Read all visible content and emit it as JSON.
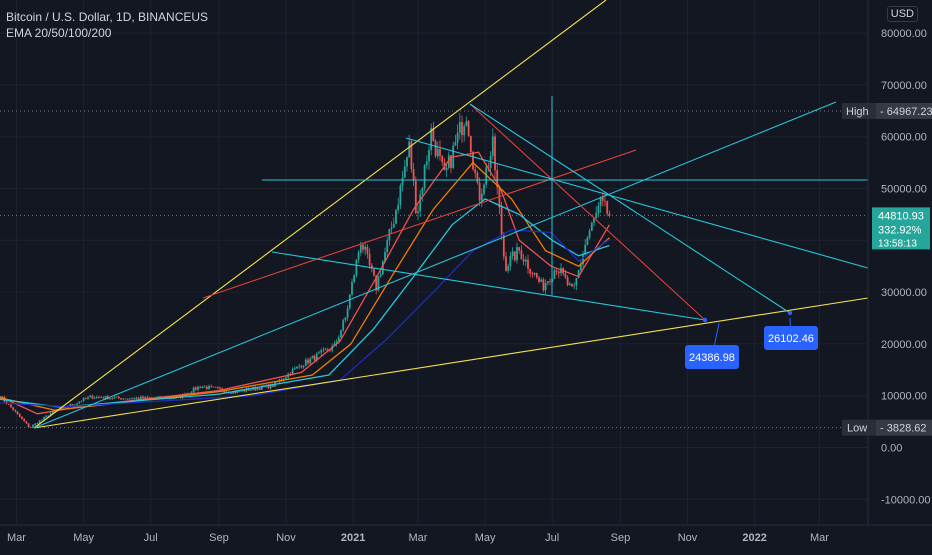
{
  "legend": {
    "symbol": "Bitcoin / U.S. Dollar, 1D, BINANCEUS",
    "indicator": "EMA 20/50/100/200"
  },
  "price_scale": {
    "currency": "USD",
    "ticks": [
      "80000.00",
      "70000.00",
      "60000.00",
      "50000.00",
      "40000.00",
      "30000.00",
      "20000.00",
      "10000.00",
      "0.00",
      "-10000.00"
    ],
    "high_label": "High",
    "high_value": "64967.23",
    "low_label": "Low",
    "low_value": "3828.62",
    "last_price": "44810.93",
    "last_change": "332.92%",
    "countdown": "13:58:13"
  },
  "time_axis": [
    "Mar",
    "May",
    "Jul",
    "Sep",
    "Nov",
    "2021",
    "Mar",
    "May",
    "Jul",
    "Sep",
    "Nov",
    "2022",
    "Mar"
  ],
  "projection_labels": [
    "24386.98",
    "26102.46"
  ],
  "colors": {
    "background": "#131722",
    "up": "#26a69a",
    "down": "#ef5350",
    "ema20": "#ef5350",
    "ema50": "#f57c00",
    "ema100": "#26c6da",
    "ema200": "#1e2dbd",
    "trend_yellow": "#f5e14a",
    "trend_cyan": "#26c6da",
    "trend_red": "#e0413a",
    "label_blue": "#2962ff"
  },
  "chart_data": {
    "type": "candlestick",
    "title": "Bitcoin / U.S. Dollar, 1D, BINANCEUS",
    "indicator": "EMA 20/50/100/200",
    "y_range": [
      -13000,
      88000
    ],
    "x_range": [
      "2020-02-15",
      "2022-04-07"
    ],
    "high": 64967.23,
    "low": 3828.62,
    "last_price": 44810.93,
    "price_series_anchors": [
      {
        "date": "2020-02-15",
        "price": 10000
      },
      {
        "date": "2020-03-13",
        "price": 3828.62
      },
      {
        "date": "2020-04-01",
        "price": 6600
      },
      {
        "date": "2020-05-08",
        "price": 9800
      },
      {
        "date": "2020-06-01",
        "price": 9500
      },
      {
        "date": "2020-07-25",
        "price": 9600
      },
      {
        "date": "2020-08-15",
        "price": 11800
      },
      {
        "date": "2020-09-15",
        "price": 10700
      },
      {
        "date": "2020-10-20",
        "price": 12000
      },
      {
        "date": "2020-11-15",
        "price": 16000
      },
      {
        "date": "2020-12-15",
        "price": 19500
      },
      {
        "date": "2020-12-25",
        "price": 25000
      },
      {
        "date": "2021-01-08",
        "price": 40000
      },
      {
        "date": "2021-01-22",
        "price": 31000
      },
      {
        "date": "2021-02-08",
        "price": 45000
      },
      {
        "date": "2021-02-21",
        "price": 58000
      },
      {
        "date": "2021-02-28",
        "price": 45000
      },
      {
        "date": "2021-03-13",
        "price": 61000
      },
      {
        "date": "2021-03-25",
        "price": 52000
      },
      {
        "date": "2021-04-14",
        "price": 64967.23
      },
      {
        "date": "2021-04-25",
        "price": 48000
      },
      {
        "date": "2021-05-08",
        "price": 58000
      },
      {
        "date": "2021-05-19",
        "price": 35000
      },
      {
        "date": "2021-06-01",
        "price": 38000
      },
      {
        "date": "2021-06-22",
        "price": 31000
      },
      {
        "date": "2021-07-05",
        "price": 35000
      },
      {
        "date": "2021-07-20",
        "price": 29800
      },
      {
        "date": "2021-08-01",
        "price": 40000
      },
      {
        "date": "2021-08-14",
        "price": 47000
      },
      {
        "date": "2021-08-22",
        "price": 44810.93
      }
    ],
    "ema_series": [
      {
        "name": "EMA 20",
        "color": "#ef5350",
        "points": [
          {
            "date": "2020-02-15",
            "price": 9800
          },
          {
            "date": "2020-03-20",
            "price": 6500
          },
          {
            "date": "2020-05-01",
            "price": 8000
          },
          {
            "date": "2020-09-01",
            "price": 11000
          },
          {
            "date": "2020-11-15",
            "price": 14500
          },
          {
            "date": "2020-12-20",
            "price": 20500
          },
          {
            "date": "2021-01-20",
            "price": 32000
          },
          {
            "date": "2021-02-25",
            "price": 46000
          },
          {
            "date": "2021-03-31",
            "price": 56000
          },
          {
            "date": "2021-04-25",
            "price": 57000
          },
          {
            "date": "2021-05-15",
            "price": 50000
          },
          {
            "date": "2021-06-01",
            "price": 40000
          },
          {
            "date": "2021-06-30",
            "price": 35000
          },
          {
            "date": "2021-07-25",
            "price": 33000
          },
          {
            "date": "2021-08-22",
            "price": 43000
          }
        ]
      },
      {
        "name": "EMA 50",
        "color": "#f57c00",
        "points": [
          {
            "date": "2020-02-15",
            "price": 9600
          },
          {
            "date": "2020-04-05",
            "price": 7200
          },
          {
            "date": "2020-09-01",
            "price": 10800
          },
          {
            "date": "2020-11-25",
            "price": 14000
          },
          {
            "date": "2020-12-30",
            "price": 20000
          },
          {
            "date": "2021-02-05",
            "price": 33000
          },
          {
            "date": "2021-03-15",
            "price": 46000
          },
          {
            "date": "2021-04-20",
            "price": 55000
          },
          {
            "date": "2021-05-25",
            "price": 48000
          },
          {
            "date": "2021-06-25",
            "price": 38000
          },
          {
            "date": "2021-07-25",
            "price": 35000
          },
          {
            "date": "2021-08-22",
            "price": 40500
          }
        ]
      },
      {
        "name": "EMA 100",
        "color": "#26c6da",
        "points": [
          {
            "date": "2020-02-15",
            "price": 9300
          },
          {
            "date": "2020-04-10",
            "price": 7800
          },
          {
            "date": "2020-09-01",
            "price": 10300
          },
          {
            "date": "2020-12-10",
            "price": 14000
          },
          {
            "date": "2021-01-20",
            "price": 23000
          },
          {
            "date": "2021-02-25",
            "price": 33000
          },
          {
            "date": "2021-04-01",
            "price": 43000
          },
          {
            "date": "2021-05-01",
            "price": 48000
          },
          {
            "date": "2021-06-01",
            "price": 45000
          },
          {
            "date": "2021-07-01",
            "price": 40000
          },
          {
            "date": "2021-07-25",
            "price": 37000
          },
          {
            "date": "2021-08-22",
            "price": 39000
          }
        ]
      },
      {
        "name": "EMA 200",
        "color": "#1e2dbd",
        "points": [
          {
            "date": "2020-02-15",
            "price": 8600
          },
          {
            "date": "2020-04-15",
            "price": 7900
          },
          {
            "date": "2020-10-01",
            "price": 10000
          },
          {
            "date": "2020-12-20",
            "price": 13000
          },
          {
            "date": "2021-02-01",
            "price": 21000
          },
          {
            "date": "2021-03-15",
            "price": 30000
          },
          {
            "date": "2021-04-20",
            "price": 38000
          },
          {
            "date": "2021-05-25",
            "price": 42000
          },
          {
            "date": "2021-06-30",
            "price": 41500
          },
          {
            "date": "2021-07-25",
            "price": 36000
          },
          {
            "date": "2021-08-22",
            "price": 40200
          }
        ]
      }
    ],
    "horizontal_levels": [
      {
        "price": 64967.23,
        "style": "dotted"
      },
      {
        "price": 44810.93,
        "style": "dotted"
      },
      {
        "price": 3828.62,
        "style": "dotted"
      }
    ],
    "projection_targets": [
      {
        "date": "2021-11-03",
        "price": 24386.98
      },
      {
        "date": "2022-01-17",
        "price": 26102.46
      }
    ]
  }
}
